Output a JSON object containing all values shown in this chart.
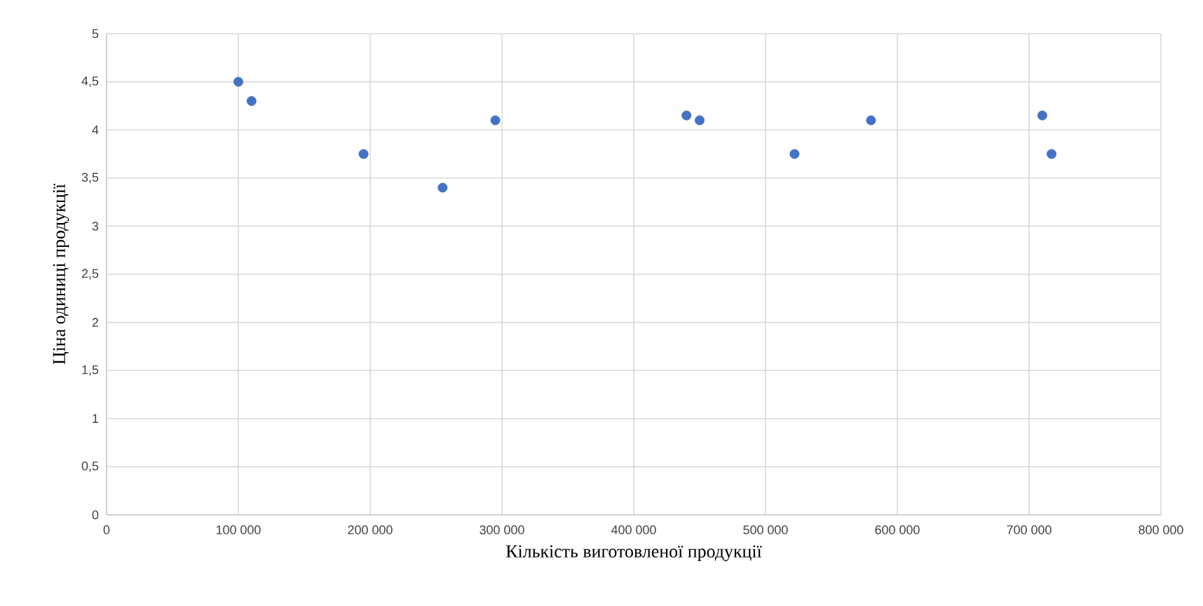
{
  "chart_data": {
    "type": "scatter",
    "xlabel": "Кількість  виготовленої продукції",
    "ylabel": "Ціна одиниці продукції",
    "x": [
      100000,
      110000,
      195000,
      255000,
      295000,
      440000,
      450000,
      522000,
      580000,
      710000,
      717000
    ],
    "values": [
      4.5,
      4.3,
      3.75,
      3.4,
      4.1,
      4.15,
      4.1,
      3.75,
      4.1,
      4.15,
      3.75
    ],
    "color": "#4472c4",
    "marker": "circle",
    "grid": true,
    "xlim": [
      0,
      800000
    ],
    "xticks": [
      0,
      {
        "value": 100000,
        "label": "100 000"
      },
      {
        "value": 200000,
        "label": "200 000"
      },
      {
        "value": 300000,
        "label": "300 000"
      },
      {
        "value": 400000,
        "label": "400 000"
      },
      {
        "value": 500000,
        "label": "500 000"
      },
      {
        "value": 600000,
        "label": "600 000"
      },
      {
        "value": 700000,
        "label": "700 000"
      },
      {
        "value": 800000,
        "label": "800 000"
      }
    ],
    "ylim": [
      0,
      5
    ],
    "yticks": [
      0,
      {
        "value": 0.5,
        "label": "0,5"
      },
      1,
      {
        "value": 1.5,
        "label": "1,5"
      },
      2,
      {
        "value": 2.5,
        "label": "2,5"
      },
      3,
      {
        "value": 3.5,
        "label": "3,5"
      },
      4,
      {
        "value": 4.5,
        "label": "4,5"
      },
      5
    ]
  }
}
